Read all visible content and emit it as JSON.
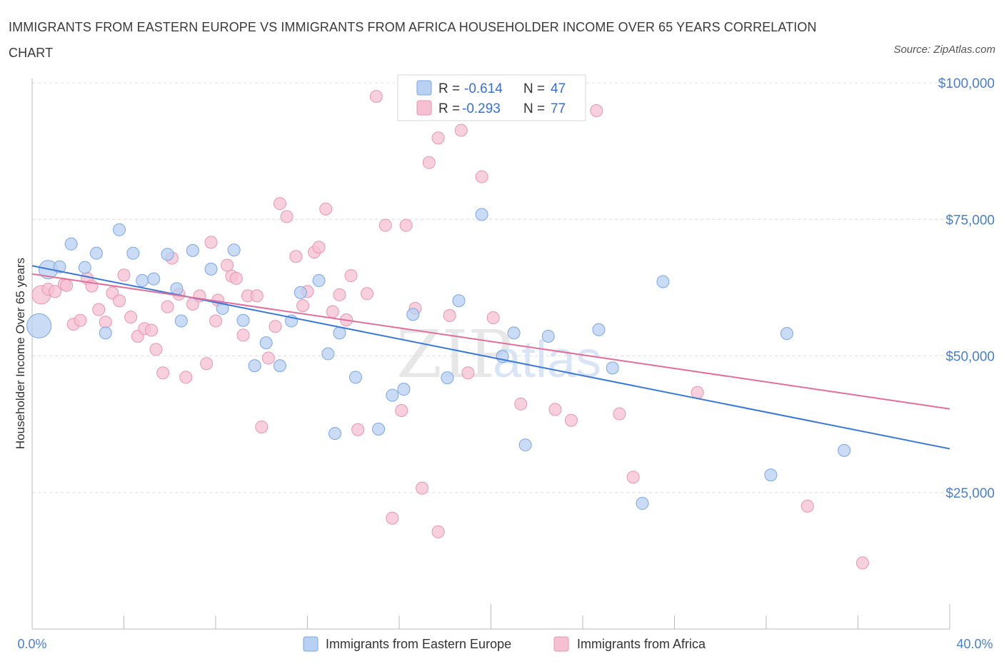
{
  "title": "IMMIGRANTS FROM EASTERN EUROPE VS IMMIGRANTS FROM AFRICA HOUSEHOLDER INCOME OVER 65 YEARS CORRELATION CHART",
  "source": "Source: ZipAtlas.com",
  "watermark": "ZIPatlas",
  "colors": {
    "blue": "#3a78d8",
    "blue_fill": "#b8d0f2",
    "pink": "#e0709a",
    "pink_fill": "#f5c0d2",
    "axis_text": "#4a7fcf"
  },
  "legend": {
    "rows": [
      {
        "r_label": "R =",
        "r_value": "-0.614",
        "n_label": "N =",
        "n_value": "47"
      },
      {
        "r_label": "R =",
        "r_value": "-0.293",
        "n_label": "N =",
        "n_value": "77"
      }
    ]
  },
  "chart_data": {
    "type": "scatter",
    "title": "IMMIGRANTS FROM EASTERN EUROPE VS IMMIGRANTS FROM AFRICA HOUSEHOLDER INCOME OVER 65 YEARS CORRELATION CHART",
    "xlabel": "",
    "ylabel": "Householder Income Over 65 years",
    "xlim": [
      0,
      40
    ],
    "ylim": [
      0,
      100000
    ],
    "x_tick_labels": [
      "0.0%",
      "40.0%"
    ],
    "y_tick_labels": [
      "$100,000",
      "$75,000",
      "$50,000",
      "$25,000"
    ],
    "y_ticks": [
      100000,
      75000,
      50000,
      25000
    ],
    "grid": true,
    "legend_position": "top-center",
    "series": [
      {
        "name": "Immigrants from Eastern Europe",
        "color": "#3a78d8",
        "r": -0.614,
        "n": 47,
        "trend": {
          "x": [
            0,
            40
          ],
          "y": [
            66500,
            33000
          ]
        },
        "points": [
          {
            "x": 0.3,
            "y": 55500,
            "s": 3
          },
          {
            "x": 0.7,
            "y": 65800,
            "s": 2
          },
          {
            "x": 1.2,
            "y": 66300,
            "s": 1
          },
          {
            "x": 1.7,
            "y": 70500,
            "s": 1
          },
          {
            "x": 2.3,
            "y": 66200,
            "s": 1
          },
          {
            "x": 2.8,
            "y": 68800,
            "s": 1
          },
          {
            "x": 3.2,
            "y": 54200,
            "s": 1
          },
          {
            "x": 3.8,
            "y": 73100,
            "s": 1
          },
          {
            "x": 4.4,
            "y": 68800,
            "s": 1
          },
          {
            "x": 4.8,
            "y": 63800,
            "s": 1
          },
          {
            "x": 5.3,
            "y": 64100,
            "s": 1
          },
          {
            "x": 5.9,
            "y": 68600,
            "s": 1
          },
          {
            "x": 6.3,
            "y": 62300,
            "s": 1
          },
          {
            "x": 6.5,
            "y": 56400,
            "s": 1
          },
          {
            "x": 7.0,
            "y": 69300,
            "s": 1
          },
          {
            "x": 7.8,
            "y": 65900,
            "s": 1
          },
          {
            "x": 8.3,
            "y": 58700,
            "s": 1
          },
          {
            "x": 8.8,
            "y": 69400,
            "s": 1
          },
          {
            "x": 9.2,
            "y": 56500,
            "s": 1
          },
          {
            "x": 9.7,
            "y": 48200,
            "s": 1
          },
          {
            "x": 10.2,
            "y": 52400,
            "s": 1
          },
          {
            "x": 10.8,
            "y": 48200,
            "s": 1
          },
          {
            "x": 11.3,
            "y": 56400,
            "s": 1
          },
          {
            "x": 11.7,
            "y": 61600,
            "s": 1
          },
          {
            "x": 12.5,
            "y": 63800,
            "s": 1
          },
          {
            "x": 12.9,
            "y": 50400,
            "s": 1
          },
          {
            "x": 13.2,
            "y": 35800,
            "s": 1
          },
          {
            "x": 13.4,
            "y": 54200,
            "s": 1
          },
          {
            "x": 14.1,
            "y": 46100,
            "s": 1
          },
          {
            "x": 15.1,
            "y": 36600,
            "s": 1
          },
          {
            "x": 15.7,
            "y": 42800,
            "s": 1
          },
          {
            "x": 16.2,
            "y": 43900,
            "s": 1
          },
          {
            "x": 16.6,
            "y": 57600,
            "s": 1
          },
          {
            "x": 18.1,
            "y": 46000,
            "s": 1
          },
          {
            "x": 18.6,
            "y": 60100,
            "s": 1
          },
          {
            "x": 19.6,
            "y": 75900,
            "s": 1
          },
          {
            "x": 20.5,
            "y": 49900,
            "s": 1
          },
          {
            "x": 21.0,
            "y": 54200,
            "s": 1
          },
          {
            "x": 21.5,
            "y": 33700,
            "s": 1
          },
          {
            "x": 22.5,
            "y": 53600,
            "s": 1
          },
          {
            "x": 24.7,
            "y": 54800,
            "s": 1
          },
          {
            "x": 25.3,
            "y": 47800,
            "s": 1
          },
          {
            "x": 26.6,
            "y": 23000,
            "s": 1
          },
          {
            "x": 27.5,
            "y": 63600,
            "s": 1
          },
          {
            "x": 32.2,
            "y": 28200,
            "s": 1
          },
          {
            "x": 32.9,
            "y": 54100,
            "s": 1
          },
          {
            "x": 35.4,
            "y": 32700,
            "s": 1
          }
        ]
      },
      {
        "name": "Immigrants from Africa",
        "color": "#e0709a",
        "r": -0.293,
        "n": 77,
        "trend": {
          "x": [
            0,
            40
          ],
          "y": [
            65000,
            40300
          ]
        },
        "points": [
          {
            "x": 0.4,
            "y": 61200,
            "s": 2
          },
          {
            "x": 0.7,
            "y": 62200,
            "s": 1
          },
          {
            "x": 1.0,
            "y": 61800,
            "s": 1
          },
          {
            "x": 1.4,
            "y": 63100,
            "s": 1
          },
          {
            "x": 1.5,
            "y": 62900,
            "s": 1
          },
          {
            "x": 1.8,
            "y": 55800,
            "s": 1
          },
          {
            "x": 2.1,
            "y": 56500,
            "s": 1
          },
          {
            "x": 2.4,
            "y": 64200,
            "s": 1
          },
          {
            "x": 2.6,
            "y": 62800,
            "s": 1
          },
          {
            "x": 2.9,
            "y": 58500,
            "s": 1
          },
          {
            "x": 3.2,
            "y": 56200,
            "s": 1
          },
          {
            "x": 3.5,
            "y": 61500,
            "s": 1
          },
          {
            "x": 3.8,
            "y": 60100,
            "s": 1
          },
          {
            "x": 4.0,
            "y": 64800,
            "s": 1
          },
          {
            "x": 4.3,
            "y": 57100,
            "s": 1
          },
          {
            "x": 4.6,
            "y": 53600,
            "s": 1
          },
          {
            "x": 4.9,
            "y": 55000,
            "s": 1
          },
          {
            "x": 5.2,
            "y": 54700,
            "s": 1
          },
          {
            "x": 5.4,
            "y": 51200,
            "s": 1
          },
          {
            "x": 5.7,
            "y": 46900,
            "s": 1
          },
          {
            "x": 5.9,
            "y": 59000,
            "s": 1
          },
          {
            "x": 6.1,
            "y": 67900,
            "s": 1
          },
          {
            "x": 6.4,
            "y": 61300,
            "s": 1
          },
          {
            "x": 6.7,
            "y": 46100,
            "s": 1
          },
          {
            "x": 7.0,
            "y": 59500,
            "s": 1
          },
          {
            "x": 7.3,
            "y": 61000,
            "s": 1
          },
          {
            "x": 7.6,
            "y": 48600,
            "s": 1
          },
          {
            "x": 7.8,
            "y": 70800,
            "s": 1
          },
          {
            "x": 8.0,
            "y": 56400,
            "s": 1
          },
          {
            "x": 8.1,
            "y": 60200,
            "s": 1
          },
          {
            "x": 8.5,
            "y": 66600,
            "s": 1
          },
          {
            "x": 8.7,
            "y": 64600,
            "s": 1
          },
          {
            "x": 8.9,
            "y": 64200,
            "s": 1
          },
          {
            "x": 9.2,
            "y": 53800,
            "s": 1
          },
          {
            "x": 9.4,
            "y": 61000,
            "s": 1
          },
          {
            "x": 9.8,
            "y": 61000,
            "s": 1
          },
          {
            "x": 10.0,
            "y": 37000,
            "s": 1
          },
          {
            "x": 10.3,
            "y": 49600,
            "s": 1
          },
          {
            "x": 10.6,
            "y": 55400,
            "s": 1
          },
          {
            "x": 10.8,
            "y": 77900,
            "s": 1
          },
          {
            "x": 11.1,
            "y": 75500,
            "s": 1
          },
          {
            "x": 11.5,
            "y": 68200,
            "s": 1
          },
          {
            "x": 11.8,
            "y": 59200,
            "s": 1
          },
          {
            "x": 12.0,
            "y": 61800,
            "s": 1
          },
          {
            "x": 12.3,
            "y": 69000,
            "s": 1
          },
          {
            "x": 12.5,
            "y": 69900,
            "s": 1
          },
          {
            "x": 12.8,
            "y": 76900,
            "s": 1
          },
          {
            "x": 13.1,
            "y": 58100,
            "s": 1
          },
          {
            "x": 13.4,
            "y": 61200,
            "s": 1
          },
          {
            "x": 13.7,
            "y": 56600,
            "s": 1
          },
          {
            "x": 13.9,
            "y": 64700,
            "s": 1
          },
          {
            "x": 14.2,
            "y": 36500,
            "s": 1
          },
          {
            "x": 14.6,
            "y": 61400,
            "s": 1
          },
          {
            "x": 15.0,
            "y": 97500,
            "s": 1
          },
          {
            "x": 15.4,
            "y": 73900,
            "s": 1
          },
          {
            "x": 15.7,
            "y": 20300,
            "s": 1
          },
          {
            "x": 16.1,
            "y": 40000,
            "s": 1
          },
          {
            "x": 16.3,
            "y": 73900,
            "s": 1
          },
          {
            "x": 16.7,
            "y": 58700,
            "s": 1
          },
          {
            "x": 17.0,
            "y": 25800,
            "s": 1
          },
          {
            "x": 17.3,
            "y": 85400,
            "s": 1
          },
          {
            "x": 17.7,
            "y": 89900,
            "s": 1
          },
          {
            "x": 17.7,
            "y": 17800,
            "s": 1
          },
          {
            "x": 18.2,
            "y": 57400,
            "s": 1
          },
          {
            "x": 18.7,
            "y": 91300,
            "s": 1
          },
          {
            "x": 19.0,
            "y": 46900,
            "s": 1
          },
          {
            "x": 19.6,
            "y": 82800,
            "s": 1
          },
          {
            "x": 20.1,
            "y": 57000,
            "s": 1
          },
          {
            "x": 21.3,
            "y": 41200,
            "s": 1
          },
          {
            "x": 22.8,
            "y": 40200,
            "s": 1
          },
          {
            "x": 23.5,
            "y": 38200,
            "s": 1
          },
          {
            "x": 24.6,
            "y": 94900,
            "s": 1
          },
          {
            "x": 25.6,
            "y": 39400,
            "s": 1
          },
          {
            "x": 26.2,
            "y": 27800,
            "s": 1
          },
          {
            "x": 29.0,
            "y": 43300,
            "s": 1
          },
          {
            "x": 33.8,
            "y": 22500,
            "s": 1
          },
          {
            "x": 36.2,
            "y": 12100,
            "s": 1
          }
        ]
      }
    ]
  }
}
